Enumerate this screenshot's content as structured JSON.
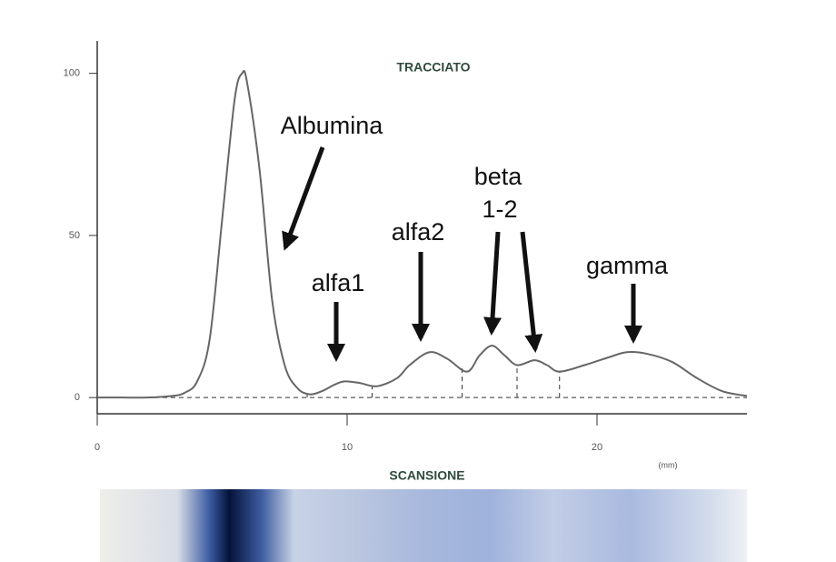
{
  "chart_data": {
    "type": "line",
    "title": "TRACCIATO",
    "subtitle": "SCANSIONE",
    "x_label": "(mm)",
    "x": [
      0,
      1,
      2,
      3,
      3.5,
      4,
      4.5,
      5,
      5.5,
      5.8,
      6,
      6.5,
      7,
      7.5,
      8,
      8.5,
      9,
      9.5,
      9.9,
      10.5,
      11.2,
      12,
      12.5,
      13.3,
      14,
      14.8,
      15.3,
      15.8,
      16.3,
      16.8,
      17.5,
      18,
      18.5,
      19.5,
      20.5,
      21.2,
      22,
      23,
      24,
      25,
      26
    ],
    "values": [
      0,
      0,
      0,
      0.5,
      1.5,
      5,
      18,
      55,
      92,
      100,
      97,
      70,
      30,
      10,
      3,
      1,
      2,
      4,
      5,
      4.5,
      3.5,
      6,
      10,
      14,
      12,
      8,
      13,
      16,
      13,
      10,
      11.5,
      10,
      8,
      10,
      12.5,
      14,
      13.5,
      11,
      6,
      2,
      0.5
    ],
    "color": "#666666",
    "separators": [
      8.4,
      11,
      14.6,
      16.8,
      18.5
    ],
    "annotations": [
      "Albumina",
      "alfa1",
      "alfa2",
      "beta",
      "1-2",
      "gamma"
    ],
    "xlim": [
      0,
      26
    ],
    "ylim": [
      -5,
      110
    ],
    "xticks": [
      0,
      10,
      20
    ],
    "yticks": [
      0,
      50,
      100
    ]
  }
}
